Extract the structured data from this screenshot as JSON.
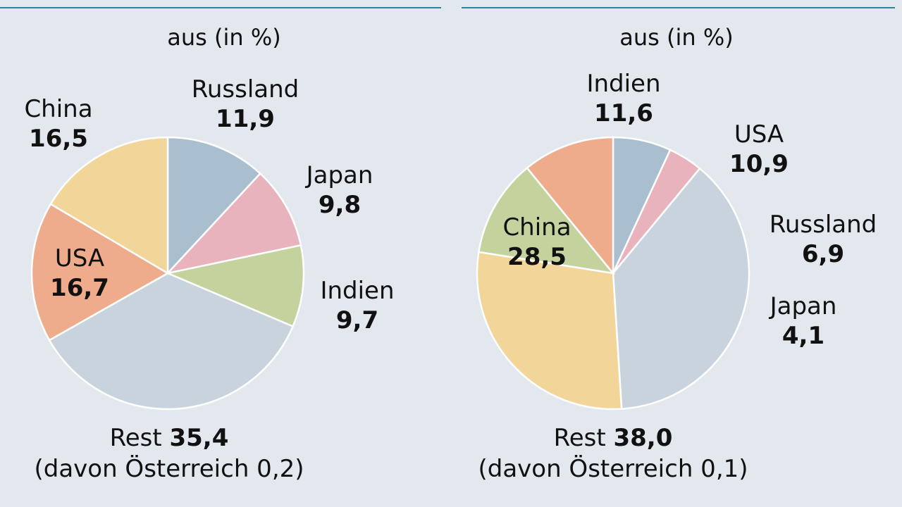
{
  "chart_data": [
    {
      "type": "pie",
      "subtitle": "aus (in %)",
      "slices": [
        {
          "name": "Russland",
          "display": "11,9",
          "value": 11.9,
          "color": "#a9bfcf"
        },
        {
          "name": "Japan",
          "display": "9,8",
          "value": 9.8,
          "color": "#e8b3bc"
        },
        {
          "name": "Indien",
          "display": "9,7",
          "value": 9.7,
          "color": "#c4d39e"
        },
        {
          "name": "Rest",
          "display": "35,4",
          "value": 35.4,
          "color": "#c9d3de"
        },
        {
          "name": "USA",
          "display": "16,7",
          "value": 16.7,
          "color": "#efac8c"
        },
        {
          "name": "China",
          "display": "16,5",
          "value": 16.5,
          "color": "#f2d598"
        }
      ],
      "rest_note": "(davon Österreich 0,2)"
    },
    {
      "type": "pie",
      "subtitle": "aus (in %)",
      "slices": [
        {
          "name": "Russland",
          "display": "6,9",
          "value": 6.9,
          "color": "#a9bfcf"
        },
        {
          "name": "Japan",
          "display": "4,1",
          "value": 4.1,
          "color": "#e8b3bc"
        },
        {
          "name": "Rest",
          "display": "38,0",
          "value": 38.0,
          "color": "#c9d3de"
        },
        {
          "name": "China",
          "display": "28,5",
          "value": 28.5,
          "color": "#f2d598"
        },
        {
          "name": "Indien",
          "display": "11,6",
          "value": 11.6,
          "color": "#c4d39e"
        },
        {
          "name": "USA",
          "display": "10,9",
          "value": 10.9,
          "color": "#efac8c"
        }
      ],
      "rest_note": "(davon Österreich 0,1)"
    }
  ]
}
